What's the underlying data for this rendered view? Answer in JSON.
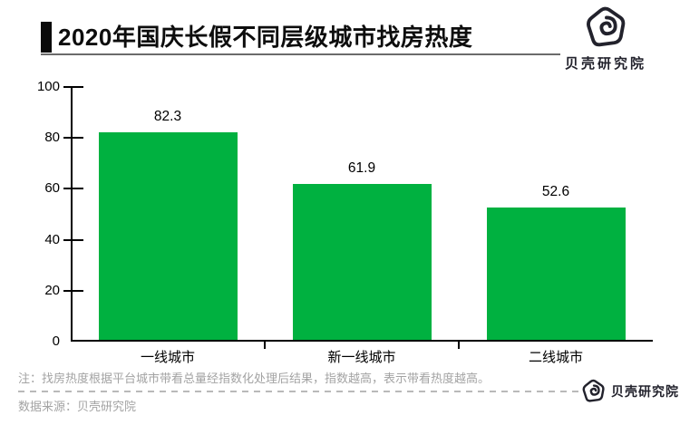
{
  "header": {
    "title": "2020年国庆长假不同层级城市找房热度"
  },
  "brand": {
    "name": "贝壳研究院",
    "logo_color": "#22222c"
  },
  "chart_data": {
    "type": "bar",
    "title": "2020年国庆长假不同层级城市找房热度",
    "categories": [
      "一线城市",
      "新一线城市",
      "二线城市"
    ],
    "values": [
      82.3,
      61.9,
      52.6
    ],
    "value_labels": [
      "82.3",
      "61.9",
      "52.6"
    ],
    "bar_color": "#00B140",
    "ylim": [
      0,
      100
    ],
    "yticks": [
      0,
      20,
      40,
      60,
      80,
      100
    ],
    "grid": false,
    "legend": false,
    "xlabel": "",
    "ylabel": ""
  },
  "footer": {
    "note": "注：找房热度根据平台城市带看总量经指数化处理后结果，指数越高，表示带看热度越高。",
    "source": "数据来源：贝壳研究院",
    "brand_name": "贝壳研究院"
  }
}
